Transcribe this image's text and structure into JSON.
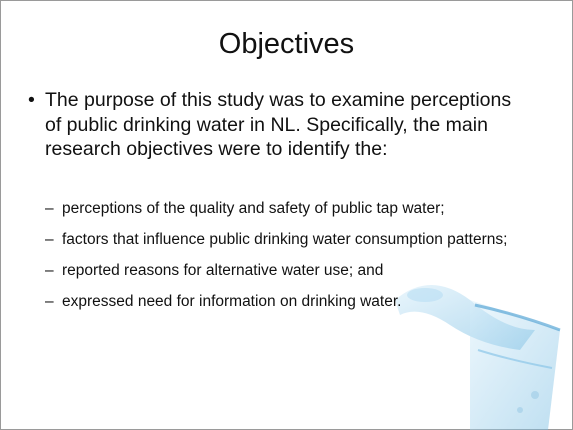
{
  "slide": {
    "title": "Objectives",
    "bullet": "The purpose of this study was to examine perceptions of public drinking water in NL. Specifically, the main research objectives were to identify the:",
    "sub_bullets": [
      "perceptions of the quality and safety of public tap water;",
      "factors that influence public drinking water consumption patterns;",
      "reported reasons for alternative water use; and",
      "expressed need for information on drinking water."
    ]
  }
}
